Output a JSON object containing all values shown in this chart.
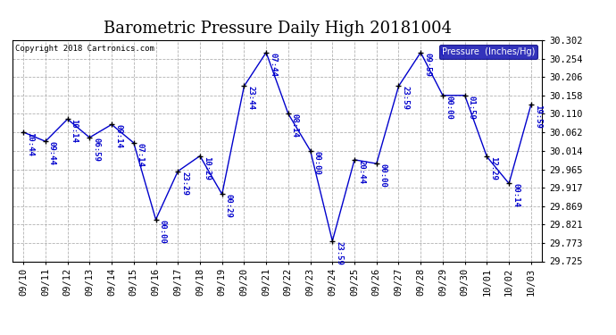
{
  "title": "Barometric Pressure Daily High 20181004",
  "copyright": "Copyright 2018 Cartronics.com",
  "legend_label": "Pressure  (Inches/Hg)",
  "background_color": "#ffffff",
  "plot_bg_color": "#ffffff",
  "grid_color": "#aaaaaa",
  "line_color": "#0000cc",
  "marker_color": "#000000",
  "text_color": "#0000cc",
  "dates": [
    "09/10",
    "09/11",
    "09/12",
    "09/13",
    "09/14",
    "09/15",
    "09/16",
    "09/17",
    "09/18",
    "09/19",
    "09/20",
    "09/21",
    "09/22",
    "09/23",
    "09/24",
    "09/25",
    "09/26",
    "09/27",
    "09/28",
    "09/29",
    "09/30",
    "10/01",
    "10/02",
    "10/03"
  ],
  "values": [
    30.062,
    30.038,
    30.096,
    30.048,
    30.082,
    30.034,
    29.834,
    29.96,
    30.0,
    29.9,
    30.182,
    30.27,
    30.11,
    30.014,
    29.778,
    29.99,
    29.98,
    30.182,
    30.27,
    30.158,
    30.158,
    29.998,
    29.928,
    30.134
  ],
  "time_labels": [
    "10:44",
    "09:44",
    "10:14",
    "06:59",
    "09:14",
    "07:14",
    "00:00",
    "23:29",
    "10:29",
    "00:29",
    "23:44",
    "07:44",
    "08:14",
    "00:00",
    "23:59",
    "20:44",
    "00:00",
    "23:59",
    "09:59",
    "00:00",
    "01:59",
    "12:29",
    "00:14",
    "19:59"
  ],
  "ylim": [
    29.725,
    30.302
  ],
  "yticks": [
    29.725,
    29.773,
    29.821,
    29.869,
    29.917,
    29.965,
    30.014,
    30.062,
    30.11,
    30.158,
    30.206,
    30.254,
    30.302
  ],
  "title_fontsize": 13,
  "tick_fontsize": 7.5,
  "label_fontsize": 6.5
}
